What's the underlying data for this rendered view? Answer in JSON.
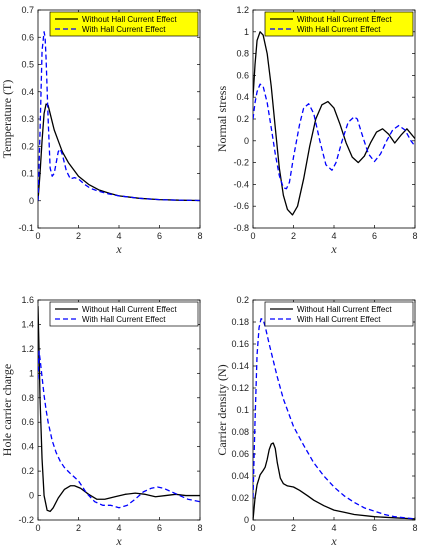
{
  "chart_data": [
    {
      "type": "line",
      "xlabel": "x",
      "ylabel": "Temperature (T)",
      "xlim": [
        0,
        8
      ],
      "ylim": [
        -0.1,
        0.7
      ],
      "xticks": [
        0,
        2,
        4,
        6,
        8
      ],
      "yticks": [
        -0.1,
        0,
        0.1,
        0.2,
        0.3,
        0.4,
        0.5,
        0.6,
        0.7
      ],
      "ytick_labels": [
        "-0.1",
        "0",
        "0.1",
        "0.2",
        "0.3",
        "0.4",
        "0.5",
        "0.6",
        "0.7"
      ],
      "legend_position": "top-right",
      "legend_bg": "#ffff00",
      "series": [
        {
          "name": "Without Hall Current Effect",
          "color": "#000000",
          "style": "solid",
          "x": [
            0,
            0.1,
            0.2,
            0.3,
            0.4,
            0.5,
            0.6,
            0.8,
            1.0,
            1.2,
            1.5,
            2.0,
            2.5,
            3.0,
            3.5,
            4.0,
            5.0,
            6.0,
            7.0,
            8.0
          ],
          "y": [
            0,
            0.1,
            0.22,
            0.32,
            0.355,
            0.35,
            0.32,
            0.26,
            0.22,
            0.18,
            0.14,
            0.09,
            0.06,
            0.04,
            0.028,
            0.018,
            0.009,
            0.004,
            0.002,
            0.001
          ]
        },
        {
          "name": "With Hall Current Effect",
          "color": "#0000ff",
          "style": "dashed",
          "x": [
            0,
            0.1,
            0.2,
            0.3,
            0.35,
            0.4,
            0.5,
            0.6,
            0.7,
            0.8,
            0.9,
            1.0,
            1.1,
            1.2,
            1.4,
            1.6,
            1.8,
            2.0,
            2.3,
            2.6,
            3.0,
            3.5,
            4.0,
            5.0,
            6.0,
            7.0,
            8.0
          ],
          "y": [
            0,
            0.25,
            0.55,
            0.62,
            0.6,
            0.52,
            0.3,
            0.12,
            0.09,
            0.1,
            0.14,
            0.18,
            0.19,
            0.17,
            0.11,
            0.08,
            0.085,
            0.08,
            0.06,
            0.045,
            0.035,
            0.025,
            0.018,
            0.009,
            0.004,
            0.002,
            0.001
          ]
        }
      ]
    },
    {
      "type": "line",
      "xlabel": "x",
      "ylabel": "Normal stress",
      "xlim": [
        0,
        8
      ],
      "ylim": [
        -0.8,
        1.2
      ],
      "xticks": [
        0,
        2,
        4,
        6,
        8
      ],
      "yticks": [
        -0.8,
        -0.6,
        -0.4,
        -0.2,
        0,
        0.2,
        0.4,
        0.6,
        0.8,
        1.0,
        1.2
      ],
      "ytick_labels": [
        "-0.8",
        "-0.6",
        "-0.4",
        "-0.2",
        "0",
        "0.2",
        "0.4",
        "0.6",
        "0.8",
        "1",
        "1.2"
      ],
      "legend_position": "top-right",
      "legend_bg": "#ffff00",
      "series": [
        {
          "name": "Without Hall Current Effect",
          "color": "#000000",
          "style": "solid",
          "x": [
            0,
            0.1,
            0.2,
            0.35,
            0.5,
            0.7,
            0.9,
            1.1,
            1.3,
            1.5,
            1.7,
            1.95,
            2.2,
            2.5,
            2.8,
            3.1,
            3.4,
            3.7,
            4.0,
            4.3,
            4.6,
            4.9,
            5.2,
            5.5,
            5.8,
            6.1,
            6.4,
            6.7,
            7.0,
            7.3,
            7.6,
            8.0
          ],
          "y": [
            0.4,
            0.7,
            0.92,
            1.0,
            0.97,
            0.8,
            0.5,
            0.12,
            -0.25,
            -0.5,
            -0.63,
            -0.68,
            -0.6,
            -0.35,
            -0.05,
            0.2,
            0.33,
            0.36,
            0.3,
            0.15,
            -0.02,
            -0.15,
            -0.2,
            -0.14,
            -0.02,
            0.08,
            0.11,
            0.06,
            -0.02,
            0.05,
            0.11,
            0.02
          ]
        },
        {
          "name": "With Hall Current Effect",
          "color": "#0000ff",
          "style": "dashed",
          "x": [
            0,
            0.1,
            0.2,
            0.35,
            0.5,
            0.7,
            0.9,
            1.1,
            1.3,
            1.5,
            1.65,
            1.8,
            2.0,
            2.3,
            2.5,
            2.75,
            3.0,
            3.3,
            3.6,
            3.9,
            4.1,
            4.4,
            4.7,
            5.0,
            5.15,
            5.4,
            5.7,
            6.0,
            6.3,
            6.6,
            6.9,
            7.2,
            7.5,
            7.8,
            8.0
          ],
          "y": [
            0.2,
            0.35,
            0.45,
            0.52,
            0.5,
            0.35,
            0.12,
            -0.12,
            -0.32,
            -0.43,
            -0.44,
            -0.38,
            -0.15,
            0.15,
            0.3,
            0.34,
            0.25,
            0.0,
            -0.22,
            -0.27,
            -0.2,
            0.0,
            0.17,
            0.22,
            0.2,
            0.05,
            -0.12,
            -0.19,
            -0.12,
            0.0,
            0.1,
            0.14,
            0.1,
            0.0,
            -0.05
          ]
        }
      ]
    },
    {
      "type": "line",
      "xlabel": "x",
      "ylabel": "Hole carrier charge",
      "xlim": [
        0,
        8
      ],
      "ylim": [
        -0.2,
        1.6
      ],
      "xticks": [
        0,
        2,
        4,
        6,
        8
      ],
      "yticks": [
        -0.2,
        0,
        0.2,
        0.4,
        0.6,
        0.8,
        1.0,
        1.2,
        1.4,
        1.6
      ],
      "ytick_labels": [
        "-0.2",
        "0",
        "0.2",
        "0.4",
        "0.6",
        "0.8",
        "1",
        "1.2",
        "1.4",
        "1.6"
      ],
      "legend_position": "top-right",
      "legend_bg": "#ffffff",
      "series": [
        {
          "name": "Without Hall Current Effect",
          "color": "#000000",
          "style": "solid",
          "x": [
            0,
            0.05,
            0.1,
            0.2,
            0.3,
            0.45,
            0.6,
            0.75,
            1.0,
            1.3,
            1.6,
            1.8,
            2.1,
            2.5,
            2.9,
            3.3,
            3.8,
            4.3,
            4.8,
            5.3,
            5.8,
            6.3,
            6.8,
            7.3,
            8.0
          ],
          "y": [
            1.55,
            1.2,
            0.8,
            0.3,
            0.0,
            -0.12,
            -0.13,
            -0.1,
            -0.02,
            0.05,
            0.08,
            0.08,
            0.06,
            0.01,
            -0.03,
            -0.03,
            -0.01,
            0.01,
            0.02,
            0.01,
            -0.01,
            0.0,
            0.01,
            0.0,
            0.0
          ]
        },
        {
          "name": "With Hall Current Effect",
          "color": "#0000ff",
          "style": "dashed",
          "x": [
            0,
            0.05,
            0.1,
            0.2,
            0.3,
            0.4,
            0.5,
            0.7,
            0.9,
            1.1,
            1.3,
            1.6,
            2.0,
            2.4,
            2.8,
            3.2,
            3.6,
            4.0,
            4.4,
            4.8,
            5.2,
            5.6,
            5.9,
            6.2,
            6.6,
            7.0,
            7.4,
            8.0
          ],
          "y": [
            0.95,
            1.18,
            1.12,
            0.97,
            0.82,
            0.7,
            0.6,
            0.45,
            0.35,
            0.28,
            0.23,
            0.18,
            0.12,
            0.02,
            -0.05,
            -0.08,
            -0.08,
            -0.1,
            -0.08,
            -0.03,
            0.03,
            0.06,
            0.07,
            0.06,
            0.03,
            0.0,
            -0.03,
            -0.05
          ]
        }
      ]
    },
    {
      "type": "line",
      "xlabel": "x",
      "ylabel": "Carrier density (N)",
      "xlim": [
        0,
        8
      ],
      "ylim": [
        0,
        0.2
      ],
      "xticks": [
        0,
        2,
        4,
        6,
        8
      ],
      "yticks": [
        0,
        0.02,
        0.04,
        0.06,
        0.08,
        0.1,
        0.12,
        0.14,
        0.16,
        0.18,
        0.2
      ],
      "ytick_labels": [
        "0",
        "0.02",
        "0.04",
        "0.06",
        "0.08",
        "0.1",
        "0.12",
        "0.14",
        "0.16",
        "0.18",
        "0.2"
      ],
      "legend_position": "top-right",
      "legend_bg": "#ffffff",
      "series": [
        {
          "name": "Without Hall Current Effect",
          "color": "#000000",
          "style": "solid",
          "x": [
            0,
            0.1,
            0.2,
            0.35,
            0.5,
            0.6,
            0.7,
            0.8,
            0.9,
            1.0,
            1.1,
            1.2,
            1.35,
            1.5,
            1.7,
            2.0,
            2.3,
            2.7,
            3.0,
            3.5,
            4.0,
            4.5,
            5.0,
            6.0,
            7.0,
            8.0
          ],
          "y": [
            0,
            0.02,
            0.032,
            0.041,
            0.045,
            0.048,
            0.055,
            0.064,
            0.069,
            0.07,
            0.065,
            0.052,
            0.038,
            0.033,
            0.031,
            0.03,
            0.027,
            0.022,
            0.018,
            0.013,
            0.009,
            0.007,
            0.005,
            0.003,
            0.002,
            0.001
          ]
        },
        {
          "name": "With Hall Current Effect",
          "color": "#0000ff",
          "style": "dashed",
          "x": [
            0,
            0.1,
            0.2,
            0.3,
            0.4,
            0.5,
            0.6,
            0.7,
            0.8,
            1.0,
            1.2,
            1.5,
            1.8,
            2.0,
            2.5,
            3.0,
            3.5,
            4.0,
            4.5,
            5.0,
            5.5,
            6.0,
            6.5,
            7.0,
            7.5,
            8.0
          ],
          "y": [
            0.02,
            0.09,
            0.15,
            0.175,
            0.183,
            0.182,
            0.176,
            0.168,
            0.16,
            0.145,
            0.13,
            0.11,
            0.095,
            0.085,
            0.068,
            0.052,
            0.04,
            0.03,
            0.022,
            0.016,
            0.011,
            0.008,
            0.005,
            0.003,
            0.002,
            0.001
          ]
        }
      ]
    }
  ]
}
